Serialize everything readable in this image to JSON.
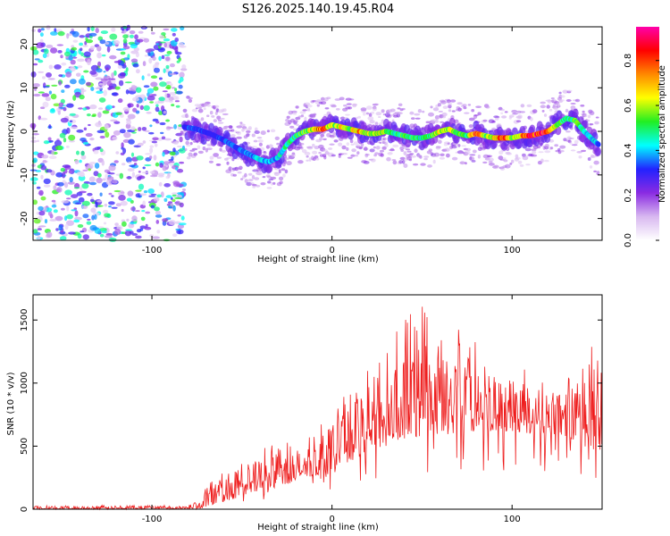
{
  "title": "S126.2025.140.19.45.R04",
  "chart_data": [
    {
      "type": "heatmap",
      "xlabel": "Height of straight line (km)",
      "ylabel": "Frequency (Hz)",
      "xlim": [
        -166,
        150
      ],
      "ylim": [
        -25,
        24
      ],
      "x_ticks": [
        "-100",
        "0",
        "100"
      ],
      "y_ticks": [
        "-20",
        "-10",
        "0",
        "10",
        "20"
      ],
      "colorbar": {
        "label": "Normalized spectral amplitude",
        "range": [
          0,
          0.95
        ],
        "ticks": [
          "0.0",
          "0.2",
          "0.4",
          "0.6",
          "0.8"
        ],
        "colors": [
          "#ffffff",
          "#d8b8f0",
          "#8a2be2",
          "#2222ff",
          "#00ffff",
          "#22ee22",
          "#ffff00",
          "#ff8800",
          "#ff0000",
          "#ff00aa"
        ]
      },
      "noise_region": {
        "x_range": [
          -166,
          -82
        ],
        "y_range": [
          -25,
          24
        ]
      },
      "ridge": {
        "x": [
          -82,
          -75,
          -68,
          -60,
          -52,
          -45,
          -40,
          -35,
          -30,
          -25,
          -20,
          -15,
          -10,
          -5,
          0,
          5,
          10,
          15,
          20,
          25,
          30,
          35,
          40,
          45,
          50,
          55,
          60,
          65,
          70,
          75,
          80,
          85,
          90,
          95,
          100,
          105,
          110,
          115,
          120,
          125,
          130,
          135,
          140,
          145,
          148
        ],
        "y": [
          1,
          0.5,
          -0.5,
          -2,
          -4,
          -5.5,
          -6.5,
          -7,
          -6,
          -3,
          -1,
          0,
          0.5,
          0.5,
          1.5,
          1,
          0.5,
          0,
          -0.5,
          -0.5,
          0,
          -0.5,
          -1,
          -1.5,
          -1.5,
          -1,
          0,
          0.5,
          -0.5,
          -1,
          -0.5,
          -1,
          -1.5,
          -1.5,
          -1.5,
          -1,
          -1,
          -0.5,
          0,
          1.5,
          3,
          2.5,
          0,
          -2,
          -3
        ],
        "amplitude": [
          0.35,
          0.35,
          0.32,
          0.35,
          0.38,
          0.4,
          0.45,
          0.4,
          0.45,
          0.5,
          0.55,
          0.6,
          0.7,
          0.9,
          0.6,
          0.7,
          0.6,
          0.8,
          0.65,
          0.7,
          0.6,
          0.5,
          0.6,
          0.55,
          0.5,
          0.55,
          0.7,
          0.65,
          0.6,
          0.55,
          0.9,
          0.6,
          0.7,
          0.9,
          0.6,
          0.8,
          0.95,
          0.9,
          0.95,
          0.6,
          0.55,
          0.6,
          0.5,
          0.45,
          0.4
        ]
      }
    },
    {
      "type": "line",
      "xlabel": "Height of straight line (km)",
      "ylabel": "SNR (10 * v/v)",
      "xlim": [
        -166,
        150
      ],
      "ylim": [
        0,
        1700
      ],
      "x_ticks": [
        "-100",
        "0",
        "100"
      ],
      "y_ticks": [
        "0",
        "500",
        "1000",
        "1500"
      ],
      "line_color": "#ee1c1c",
      "envelope": {
        "x": [
          -166,
          -85,
          -80,
          -75,
          -70,
          -60,
          -50,
          -40,
          -30,
          -20,
          -10,
          0,
          10,
          20,
          30,
          40,
          50,
          60,
          70,
          80,
          90,
          100,
          110,
          120,
          130,
          140,
          150
        ],
        "baseline": [
          0,
          0,
          0,
          0,
          20,
          60,
          100,
          130,
          180,
          220,
          260,
          320,
          380,
          450,
          500,
          560,
          580,
          590,
          600,
          610,
          620,
          610,
          600,
          600,
          580,
          500,
          450
        ],
        "peak": [
          30,
          30,
          35,
          60,
          180,
          320,
          420,
          480,
          520,
          560,
          620,
          780,
          950,
          1150,
          1300,
          1500,
          1650,
          1400,
          1550,
          1350,
          1200,
          1150,
          1100,
          1050,
          1000,
          1350,
          1300
        ]
      }
    }
  ]
}
